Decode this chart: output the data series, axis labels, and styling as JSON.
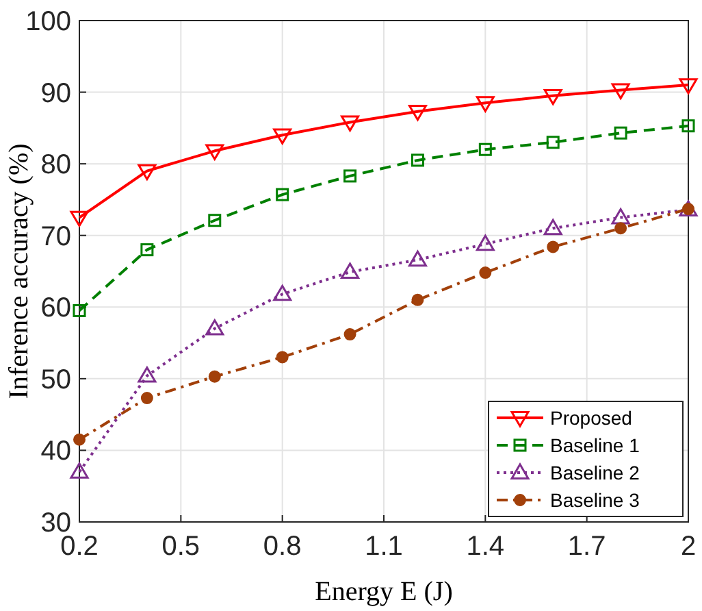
{
  "chart_data": {
    "type": "line",
    "xlabel": "Energy E (J)",
    "ylabel": "Inference accuracy (%)",
    "x": [
      0.2,
      0.4,
      0.6,
      0.8,
      1.0,
      1.2,
      1.4,
      1.6,
      1.8,
      2.0
    ],
    "xlim": [
      0.2,
      2
    ],
    "xticks": [
      0.2,
      0.5,
      0.8,
      1.1,
      1.4,
      1.7,
      2
    ],
    "ylim": [
      30,
      100
    ],
    "yticks": [
      30,
      40,
      50,
      60,
      70,
      80,
      90,
      100
    ],
    "grid": true,
    "legend": "bottom right",
    "series": [
      {
        "name": "Proposed",
        "color": "#ff0000",
        "marker": "triangle-down",
        "line_style": "solid",
        "values": [
          72.5,
          79,
          81.8,
          84,
          85.8,
          87.3,
          88.5,
          89.5,
          90.3,
          91
        ]
      },
      {
        "name": "Baseline 1",
        "color": "#008000",
        "marker": "square",
        "line_style": "dashed",
        "values": [
          59.5,
          68,
          72.1,
          75.7,
          78.3,
          80.5,
          82,
          83,
          84.3,
          85.3
        ]
      },
      {
        "name": "Baseline 2",
        "color": "#7e2f8e",
        "marker": "triangle",
        "line_style": "dotted",
        "values": [
          37,
          50.4,
          57,
          61.8,
          64.9,
          66.6,
          68.8,
          71,
          72.5,
          73.6
        ]
      },
      {
        "name": "Baseline 3",
        "color": "#a2400a",
        "marker": "circle",
        "line_style": "dashdot",
        "values": [
          41.5,
          47.3,
          50.3,
          53,
          56.2,
          61,
          64.8,
          68.4,
          71,
          73.7
        ]
      }
    ]
  }
}
